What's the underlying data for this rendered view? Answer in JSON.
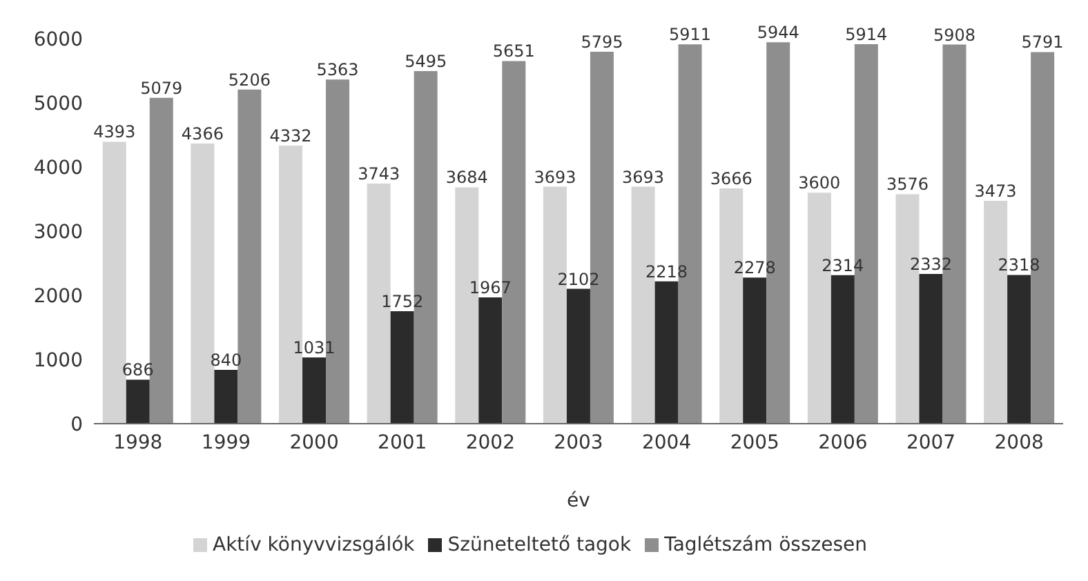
{
  "chart_data": {
    "type": "bar",
    "xlabel": "év",
    "categories": [
      "1998",
      "1999",
      "2000",
      "2001",
      "2002",
      "2003",
      "2004",
      "2005",
      "2006",
      "2007",
      "2008"
    ],
    "series": [
      {
        "name": "Aktív könyvvizsgálók",
        "color": "#d4d4d4",
        "values": [
          4393,
          4366,
          4332,
          3743,
          3684,
          3693,
          3693,
          3666,
          3600,
          3576,
          3473
        ]
      },
      {
        "name": "Szüneteltető tagok",
        "color": "#2b2b2b",
        "values": [
          686,
          840,
          1031,
          1752,
          1967,
          2102,
          2218,
          2278,
          2314,
          2332,
          2318
        ]
      },
      {
        "name": "Taglétszám összesen",
        "color": "#8e8e8e",
        "values": [
          5079,
          5206,
          5363,
          5495,
          5651,
          5795,
          5911,
          5944,
          5914,
          5908,
          5791
        ]
      }
    ],
    "ylim": [
      0,
      6000
    ],
    "yticks": [
      0,
      1000,
      2000,
      3000,
      4000,
      5000,
      6000
    ],
    "grid": false,
    "legend": "bottom",
    "data_labels": true
  }
}
